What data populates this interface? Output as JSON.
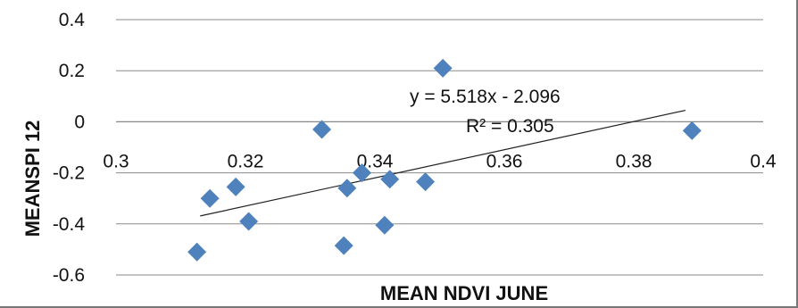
{
  "chart_data": {
    "type": "scatter",
    "title": "",
    "xlabel": "MEAN NDVI JUNE",
    "ylabel": "MEANSPI 12",
    "xlim": [
      0.3,
      0.4
    ],
    "ylim": [
      -0.6,
      0.4
    ],
    "xticks": [
      "0.3",
      "0.32",
      "0.34",
      "0.36",
      "0.38",
      "0.4"
    ],
    "yticks": [
      "0.4",
      "0.2",
      "0",
      "-0.2",
      "-0.4",
      "-0.6"
    ],
    "grid": "horizontal",
    "marker": "diamond",
    "marker_color": "#4F81BD",
    "series": [
      {
        "x": [
          0.3125,
          0.3145,
          0.3185,
          0.3205,
          0.3318,
          0.3352,
          0.3357,
          0.338,
          0.3415,
          0.3423,
          0.3478,
          0.3505,
          0.389
        ],
        "y": [
          -0.51,
          -0.3,
          -0.255,
          -0.39,
          -0.03,
          -0.485,
          -0.26,
          -0.2,
          -0.405,
          -0.225,
          -0.235,
          0.21,
          -0.035
        ]
      }
    ],
    "trendline": {
      "slope": 5.518,
      "intercept": -2.096,
      "x_range": [
        0.313,
        0.388
      ],
      "color": "#222222"
    },
    "annotations": {
      "equation": "y = 5.518x - 2.096",
      "r_squared": "R² = 0.305"
    }
  }
}
